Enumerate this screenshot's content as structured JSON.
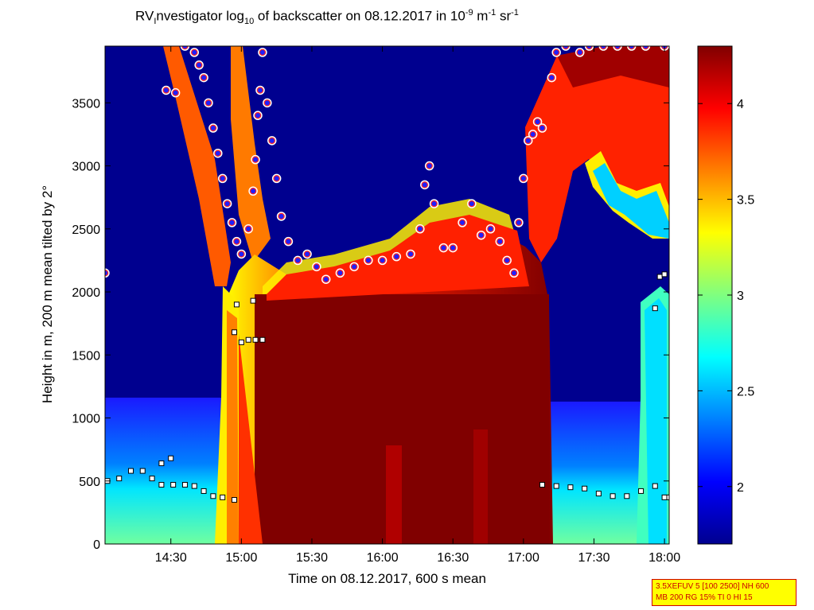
{
  "title": {
    "prefix": "RV",
    "sub1": "I",
    "mid": "nvestigator log",
    "sub2": "10",
    "suffix": " of backscatter on 08.12.2017 in 10",
    "sup1": "-9",
    "unit_m": " m",
    "sup2": "-1",
    "unit_sr": " sr",
    "sup3": "-1"
  },
  "params": {
    "line1": "3.5XEFUV 5 [100 2500] NH 600",
    "line2": "MB 200 RG 15% TI 0 HI 15"
  },
  "chart_data": {
    "type": "heatmap",
    "xlabel": "Time on 08.12.2017, 600 s mean",
    "ylabel": "Height in m, 200 m mean tilted by 2°",
    "x_ticks": [
      "14:30",
      "15:00",
      "15:30",
      "16:00",
      "16:30",
      "17:00",
      "17:30",
      "18:00"
    ],
    "y_ticks": [
      "0",
      "500",
      "1000",
      "1500",
      "2000",
      "2500",
      "3000",
      "3500"
    ],
    "xlim_minutes": [
      842,
      1082
    ],
    "ylim": [
      0,
      3950
    ],
    "colorbar": {
      "range": [
        1.7,
        4.3
      ],
      "ticks": [
        "2",
        "2.5",
        "3",
        "3.5",
        "4"
      ],
      "colormap": "jet"
    },
    "cloud_top_points_time_height": [
      [
        868,
        3600
      ],
      [
        872,
        3580
      ],
      [
        876,
        3950
      ],
      [
        880,
        3900
      ],
      [
        882,
        3800
      ],
      [
        884,
        3700
      ],
      [
        886,
        3500
      ],
      [
        888,
        3300
      ],
      [
        890,
        3100
      ],
      [
        892,
        2900
      ],
      [
        894,
        2700
      ],
      [
        896,
        2550
      ],
      [
        898,
        2400
      ],
      [
        900,
        2300
      ],
      [
        903,
        2500
      ],
      [
        905,
        2800
      ],
      [
        906,
        3050
      ],
      [
        907,
        3400
      ],
      [
        908,
        3600
      ],
      [
        909,
        3900
      ],
      [
        911,
        3500
      ],
      [
        913,
        3200
      ],
      [
        915,
        2900
      ],
      [
        917,
        2600
      ],
      [
        920,
        2400
      ],
      [
        924,
        2250
      ],
      [
        928,
        2300
      ],
      [
        932,
        2200
      ],
      [
        936,
        2100
      ],
      [
        942,
        2150
      ],
      [
        948,
        2200
      ],
      [
        954,
        2250
      ],
      [
        960,
        2250
      ],
      [
        966,
        2280
      ],
      [
        972,
        2300
      ],
      [
        976,
        2500
      ],
      [
        978,
        2850
      ],
      [
        980,
        3000
      ],
      [
        982,
        2700
      ],
      [
        986,
        2350
      ],
      [
        990,
        2350
      ],
      [
        994,
        2550
      ],
      [
        998,
        2700
      ],
      [
        1002,
        2450
      ],
      [
        1006,
        2500
      ],
      [
        1010,
        2400
      ],
      [
        1013,
        2250
      ],
      [
        1016,
        2150
      ],
      [
        1018,
        2550
      ],
      [
        1020,
        2900
      ],
      [
        1022,
        3200
      ],
      [
        1024,
        3250
      ],
      [
        1026,
        3350
      ],
      [
        1028,
        3300
      ],
      [
        1032,
        3700
      ],
      [
        1034,
        3900
      ],
      [
        1038,
        3950
      ],
      [
        1044,
        3900
      ],
      [
        1048,
        3950
      ],
      [
        1054,
        3950
      ],
      [
        1060,
        3950
      ],
      [
        1066,
        3950
      ],
      [
        1072,
        3950
      ],
      [
        1080,
        3950
      ],
      [
        842,
        2150
      ]
    ],
    "cloud_base_points_time_height": [
      [
        843,
        500
      ],
      [
        848,
        520
      ],
      [
        853,
        580
      ],
      [
        858,
        580
      ],
      [
        862,
        520
      ],
      [
        866,
        470
      ],
      [
        871,
        470
      ],
      [
        876,
        470
      ],
      [
        880,
        460
      ],
      [
        884,
        420
      ],
      [
        888,
        380
      ],
      [
        892,
        370
      ],
      [
        897,
        350
      ],
      [
        900,
        1600
      ],
      [
        903,
        1620
      ],
      [
        906,
        1620
      ],
      [
        909,
        1620
      ],
      [
        897,
        1680
      ],
      [
        898,
        1900
      ],
      [
        905,
        1930
      ],
      [
        1028,
        470
      ],
      [
        1034,
        460
      ],
      [
        1040,
        450
      ],
      [
        1046,
        440
      ],
      [
        1052,
        400
      ],
      [
        1058,
        380
      ],
      [
        1064,
        380
      ],
      [
        1070,
        420
      ],
      [
        1076,
        460
      ],
      [
        1080,
        370
      ],
      [
        1076,
        1870
      ],
      [
        1078,
        2120
      ],
      [
        1080,
        2140
      ],
      [
        866,
        640
      ],
      [
        870,
        680
      ],
      [
        1082,
        370
      ]
    ]
  }
}
